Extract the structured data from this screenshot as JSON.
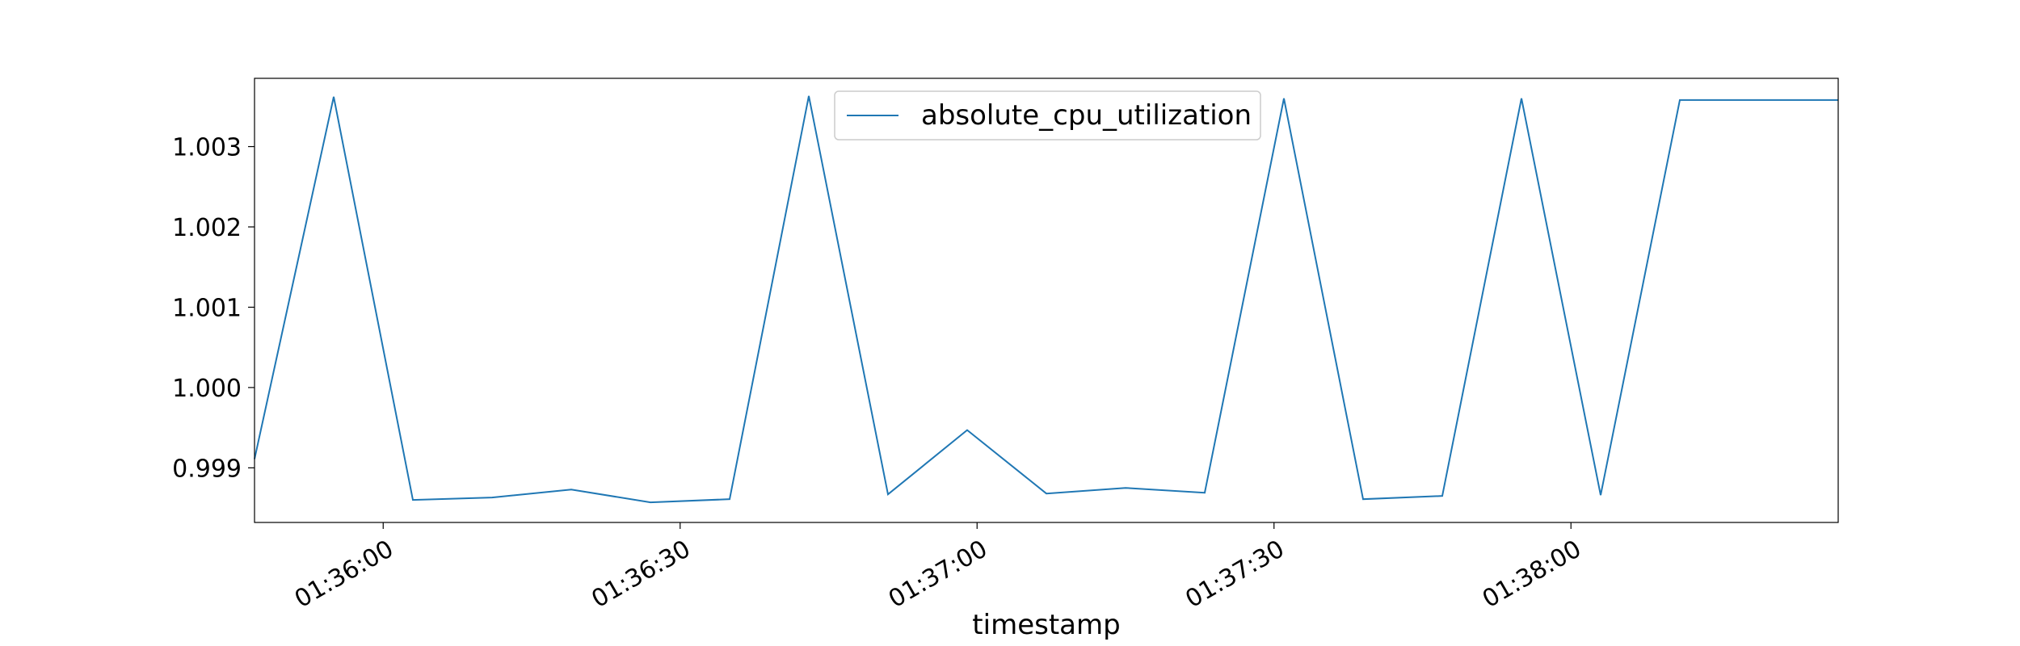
{
  "chart_data": {
    "type": "line",
    "title": "",
    "xlabel": "timestamp",
    "ylabel": "",
    "x_tick_labels": [
      "01:36:00",
      "01:36:30",
      "01:37:00",
      "01:37:30",
      "01:38:00"
    ],
    "x_tick_values_sec": [
      0,
      30,
      60,
      90,
      120
    ],
    "y_ticks": [
      0.999,
      1.0,
      1.001,
      1.002,
      1.003
    ],
    "y_tick_labels": [
      "0.999",
      "1.000",
      "1.001",
      "1.002",
      "1.003"
    ],
    "xlim_sec": [
      -13,
      147
    ],
    "ylim": [
      0.99832,
      1.00385
    ],
    "grid": false,
    "legend_position": "upper center",
    "series": [
      {
        "name": "absolute_cpu_utilization",
        "color": "#1f77b4",
        "x_sec": [
          -13,
          -5,
          3,
          11,
          19,
          27,
          35,
          43,
          51,
          59,
          67,
          75,
          83,
          91,
          99,
          107,
          115,
          123,
          131,
          139,
          147
        ],
        "values": [
          0.99911,
          1.00362,
          0.9986,
          0.99863,
          0.99873,
          0.99857,
          0.99861,
          1.00363,
          0.99867,
          0.99947,
          0.99868,
          0.99875,
          0.99869,
          1.0036,
          0.99861,
          0.99865,
          1.0036,
          0.99866,
          1.00358,
          1.00358,
          1.00358
        ]
      }
    ]
  }
}
